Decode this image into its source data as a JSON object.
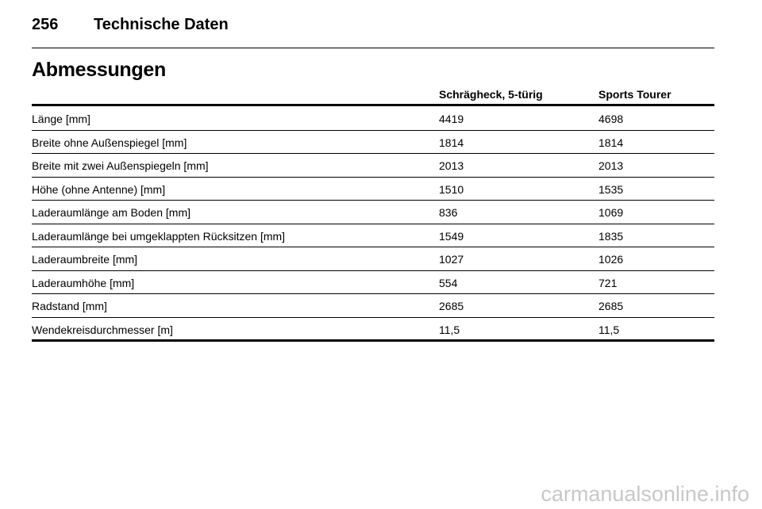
{
  "header": {
    "page_number": "256",
    "title": "Technische Daten"
  },
  "section_title": "Abmessungen",
  "table": {
    "columns": [
      "Schrägheck, 5-türig",
      "Sports Tourer"
    ],
    "rows": [
      [
        "Länge [mm]",
        "4419",
        "4698"
      ],
      [
        "Breite ohne Außenspiegel [mm]",
        "1814",
        "1814"
      ],
      [
        "Breite mit zwei Außenspiegeln [mm]",
        "2013",
        "2013"
      ],
      [
        "Höhe (ohne Antenne) [mm]",
        "1510",
        "1535"
      ],
      [
        "Laderaumlänge am Boden [mm]",
        "836",
        "1069"
      ],
      [
        "Laderaumlänge bei umgeklappten Rücksitzen [mm]",
        "1549",
        "1835"
      ],
      [
        "Laderaumbreite [mm]",
        "1027",
        "1026"
      ],
      [
        "Laderaumhöhe [mm]",
        "554",
        "721"
      ],
      [
        "Radstand [mm]",
        "2685",
        "2685"
      ],
      [
        "Wendekreisdurchmesser [m]",
        "11,5",
        "11,5"
      ]
    ]
  },
  "watermark": "carmanualsonline.info"
}
